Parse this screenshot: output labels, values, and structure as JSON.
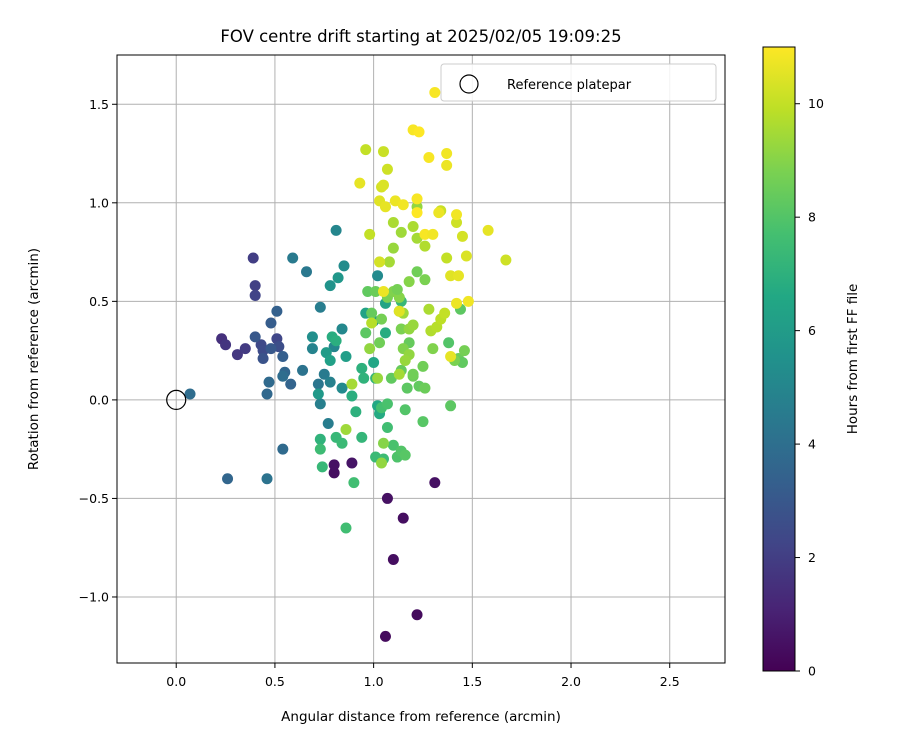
{
  "colors": {
    "grid": "#b0b0b0",
    "reference_marker": "#000000",
    "viridis": [
      "#440154",
      "#482475",
      "#414487",
      "#355f8d",
      "#2a788e",
      "#21918c",
      "#22a884",
      "#44bf70",
      "#7ad151",
      "#bddf26",
      "#fde725"
    ]
  },
  "chart_data": {
    "type": "scatter",
    "title": "FOV centre drift starting at 2025/02/05 19:09:25",
    "xlabel": "Angular distance from reference (arcmin)",
    "ylabel": "Rotation from reference (arcmin)",
    "xlim": [
      -0.3,
      2.78
    ],
    "ylim": [
      -1.335,
      1.75
    ],
    "xticks": [
      0.0,
      0.5,
      1.0,
      1.5,
      2.0,
      2.5
    ],
    "xtick_labels": [
      "0.0",
      "0.5",
      "1.0",
      "1.5",
      "2.0",
      "2.5"
    ],
    "yticks": [
      -1.0,
      -0.5,
      0.0,
      0.5,
      1.0,
      1.5
    ],
    "ytick_labels": [
      "−1.0",
      "−0.5",
      "0.0",
      "0.5",
      "1.0",
      "1.5"
    ],
    "grid": true,
    "legend": {
      "placement": "top-right",
      "entries": [
        "Reference platepar"
      ]
    },
    "reference_point": {
      "x": 0.0,
      "y": 0.0
    },
    "colorbar": {
      "label": "Hours from first FF file",
      "range": [
        0,
        11
      ],
      "ticks": [
        0,
        2,
        4,
        6,
        8,
        10
      ],
      "tick_labels": [
        "0",
        "2",
        "4",
        "6",
        "8",
        "10"
      ]
    },
    "points": [
      [
        1.06,
        -1.2,
        0.3
      ],
      [
        1.22,
        -1.09,
        0.3
      ],
      [
        1.1,
        -0.81,
        0.4
      ],
      [
        1.15,
        -0.6,
        0.4
      ],
      [
        1.07,
        -0.5,
        0.5
      ],
      [
        1.31,
        -0.42,
        0.5
      ],
      [
        0.8,
        -0.37,
        0.4
      ],
      [
        0.8,
        -0.33,
        0.5
      ],
      [
        0.89,
        -0.32,
        0.6
      ],
      [
        0.23,
        0.31,
        1.5
      ],
      [
        0.25,
        0.28,
        1.7
      ],
      [
        0.31,
        0.23,
        1.8
      ],
      [
        0.35,
        0.26,
        1.9
      ],
      [
        0.39,
        0.72,
        2.0
      ],
      [
        0.4,
        0.58,
        2.1
      ],
      [
        0.4,
        0.53,
        2.2
      ],
      [
        0.43,
        0.28,
        2.4
      ],
      [
        0.44,
        0.25,
        2.5
      ],
      [
        0.51,
        0.31,
        2.3
      ],
      [
        0.52,
        0.27,
        2.6
      ],
      [
        0.44,
        0.21,
        2.8
      ],
      [
        0.4,
        0.32,
        3.0
      ],
      [
        0.48,
        0.26,
        3.0
      ],
      [
        0.48,
        0.39,
        3.2
      ],
      [
        0.51,
        0.45,
        3.4
      ],
      [
        0.54,
        0.22,
        3.3
      ],
      [
        0.55,
        0.14,
        3.6
      ],
      [
        0.58,
        0.08,
        3.5
      ],
      [
        0.47,
        0.09,
        3.8
      ],
      [
        0.46,
        0.03,
        3.7
      ],
      [
        0.26,
        -0.4,
        3.6
      ],
      [
        0.54,
        -0.25,
        3.8
      ],
      [
        0.07,
        0.03,
        3.9
      ],
      [
        0.54,
        0.12,
        3.9
      ],
      [
        0.46,
        -0.4,
        4.2
      ],
      [
        0.64,
        0.15,
        4.2
      ],
      [
        0.72,
        0.08,
        4.3
      ],
      [
        0.75,
        0.13,
        4.5
      ],
      [
        0.78,
        0.09,
        4.8
      ],
      [
        0.73,
        -0.02,
        4.7
      ],
      [
        0.77,
        -0.12,
        4.6
      ],
      [
        0.59,
        0.72,
        4.5
      ],
      [
        0.66,
        0.65,
        4.4
      ],
      [
        0.73,
        0.47,
        4.6
      ],
      [
        0.69,
        0.26,
        4.9
      ],
      [
        0.81,
        0.86,
        5.0
      ],
      [
        0.84,
        0.36,
        5.1
      ],
      [
        0.8,
        0.27,
        5.0
      ],
      [
        0.84,
        0.06,
        5.2
      ],
      [
        0.69,
        0.32,
        5.4
      ],
      [
        0.85,
        0.68,
        5.3
      ],
      [
        1.02,
        0.63,
        5.2
      ],
      [
        0.78,
        0.58,
        5.6
      ],
      [
        0.82,
        0.62,
        5.8
      ],
      [
        1.0,
        0.4,
        5.7
      ],
      [
        0.72,
        0.03,
        5.9
      ],
      [
        0.76,
        0.24,
        6.0
      ],
      [
        0.86,
        0.22,
        6.1
      ],
      [
        0.78,
        0.2,
        6.2
      ],
      [
        0.96,
        0.44,
        6.3
      ],
      [
        1.0,
        0.19,
        6.5
      ],
      [
        1.06,
        0.49,
        6.4
      ],
      [
        1.02,
        -0.03,
        6.6
      ],
      [
        1.03,
        -0.07,
        6.7
      ],
      [
        1.06,
        0.34,
        6.8
      ],
      [
        0.79,
        0.32,
        6.8
      ],
      [
        0.81,
        0.3,
        6.9
      ],
      [
        0.89,
        0.02,
        6.9
      ],
      [
        0.94,
        0.16,
        7.0
      ],
      [
        0.95,
        0.11,
        7.1
      ],
      [
        1.01,
        0.11,
        7.2
      ],
      [
        1.14,
        0.5,
        7.3
      ],
      [
        0.91,
        -0.06,
        7.0
      ],
      [
        0.94,
        -0.19,
        7.2
      ],
      [
        0.81,
        -0.19,
        7.3
      ],
      [
        0.84,
        -0.22,
        7.4
      ],
      [
        0.73,
        -0.2,
        7.1
      ],
      [
        0.73,
        -0.25,
        7.5
      ],
      [
        0.74,
        -0.34,
        7.3
      ],
      [
        0.9,
        -0.42,
        7.6
      ],
      [
        0.86,
        -0.65,
        7.6
      ],
      [
        1.01,
        -0.29,
        7.4
      ],
      [
        1.05,
        -0.3,
        7.5
      ],
      [
        1.07,
        -0.14,
        7.6
      ],
      [
        1.04,
        -0.04,
        7.7
      ],
      [
        1.07,
        -0.02,
        7.8
      ],
      [
        1.1,
        -0.23,
        7.8
      ],
      [
        1.12,
        -0.29,
        7.9
      ],
      [
        1.14,
        -0.26,
        8.0
      ],
      [
        1.16,
        -0.28,
        8.1
      ],
      [
        1.16,
        -0.05,
        8.0
      ],
      [
        1.17,
        0.06,
        8.2
      ],
      [
        1.09,
        0.11,
        8.3
      ],
      [
        1.14,
        0.15,
        8.4
      ],
      [
        1.2,
        0.12,
        8.5
      ],
      [
        1.18,
        0.29,
        8.4
      ],
      [
        1.2,
        0.13,
        8.6
      ],
      [
        1.23,
        0.07,
        8.3
      ],
      [
        1.25,
        -0.11,
        8.1
      ],
      [
        1.39,
        -0.03,
        8.2
      ],
      [
        1.26,
        0.06,
        8.5
      ],
      [
        1.25,
        0.17,
        8.6
      ],
      [
        1.38,
        0.29,
        8.0
      ],
      [
        1.44,
        0.46,
        8.2
      ],
      [
        1.43,
        0.21,
        8.5
      ],
      [
        1.45,
        0.19,
        8.3
      ],
      [
        1.46,
        0.25,
        8.7
      ],
      [
        1.41,
        0.2,
        8.8
      ],
      [
        1.3,
        0.26,
        8.9
      ],
      [
        0.96,
        0.34,
        8.2
      ],
      [
        0.97,
        0.55,
        8.3
      ],
      [
        0.99,
        0.44,
        8.4
      ],
      [
        1.01,
        0.55,
        8.5
      ],
      [
        1.03,
        0.29,
        8.6
      ],
      [
        1.04,
        0.41,
        8.7
      ],
      [
        1.07,
        0.52,
        8.8
      ],
      [
        1.1,
        0.55,
        8.9
      ],
      [
        1.13,
        0.52,
        9.0
      ],
      [
        1.14,
        0.36,
        8.8
      ],
      [
        1.15,
        0.26,
        8.9
      ],
      [
        1.12,
        0.56,
        8.7
      ],
      [
        1.22,
        0.65,
        8.6
      ],
      [
        1.26,
        0.61,
        8.8
      ],
      [
        1.18,
        0.6,
        9.0
      ],
      [
        1.13,
        0.45,
        9.1
      ],
      [
        1.18,
        0.36,
        9.2
      ],
      [
        1.2,
        0.38,
        9.3
      ],
      [
        1.15,
        0.44,
        9.4
      ],
      [
        1.18,
        0.23,
        9.2
      ],
      [
        1.16,
        0.2,
        9.3
      ],
      [
        1.13,
        0.13,
        9.5
      ],
      [
        1.05,
        -0.22,
        9.0
      ],
      [
        1.04,
        -0.32,
        9.2
      ],
      [
        0.86,
        -0.15,
        9.4
      ],
      [
        0.89,
        0.08,
        9.5
      ],
      [
        1.02,
        0.11,
        9.3
      ],
      [
        0.98,
        0.26,
        9.2
      ],
      [
        1.08,
        0.7,
        9.5
      ],
      [
        1.1,
        0.77,
        9.3
      ],
      [
        1.14,
        0.85,
        9.4
      ],
      [
        1.2,
        0.88,
        9.6
      ],
      [
        1.22,
        0.82,
        9.5
      ],
      [
        1.26,
        0.78,
        9.7
      ],
      [
        1.22,
        0.98,
        9.2
      ],
      [
        1.1,
        0.9,
        9.6
      ],
      [
        1.28,
        0.46,
        9.6
      ],
      [
        1.29,
        0.35,
        9.7
      ],
      [
        1.32,
        0.37,
        9.8
      ],
      [
        1.34,
        0.41,
        9.9
      ],
      [
        1.36,
        0.44,
        10.0
      ],
      [
        1.34,
        0.96,
        10.1
      ],
      [
        1.37,
        0.72,
        10.0
      ],
      [
        1.42,
        0.9,
        10.2
      ],
      [
        1.45,
        0.83,
        10.3
      ],
      [
        1.47,
        0.73,
        10.4
      ],
      [
        1.39,
        0.63,
        10.5
      ],
      [
        1.43,
        0.63,
        10.6
      ],
      [
        1.42,
        0.49,
        10.7
      ],
      [
        1.48,
        0.5,
        10.8
      ],
      [
        1.39,
        0.22,
        10.6
      ],
      [
        0.96,
        1.27,
        10.0
      ],
      [
        1.05,
        1.26,
        10.1
      ],
      [
        1.07,
        1.17,
        10.2
      ],
      [
        1.04,
        1.08,
        10.3
      ],
      [
        1.05,
        1.09,
        10.4
      ],
      [
        1.03,
        1.01,
        10.5
      ],
      [
        1.06,
        0.98,
        10.6
      ],
      [
        1.11,
        1.01,
        10.7
      ],
      [
        1.15,
        0.99,
        10.8
      ],
      [
        1.2,
        1.37,
        10.9
      ],
      [
        1.23,
        1.36,
        11.0
      ],
      [
        1.28,
        1.23,
        10.9
      ],
      [
        1.31,
        1.56,
        10.9
      ],
      [
        1.37,
        1.25,
        10.8
      ],
      [
        1.37,
        1.19,
        10.7
      ],
      [
        1.42,
        0.94,
        10.8
      ],
      [
        1.22,
        1.02,
        10.9
      ],
      [
        1.22,
        0.95,
        11.0
      ],
      [
        1.26,
        0.84,
        10.9
      ],
      [
        1.3,
        0.84,
        10.8
      ],
      [
        1.33,
        0.95,
        10.7
      ],
      [
        1.58,
        0.86,
        10.6
      ],
      [
        1.67,
        0.71,
        10.2
      ],
      [
        1.13,
        0.45,
        10.5
      ],
      [
        1.05,
        0.55,
        10.7
      ],
      [
        1.03,
        0.7,
        10.3
      ],
      [
        0.98,
        0.84,
        10.0
      ],
      [
        0.93,
        1.1,
        10.6
      ],
      [
        0.99,
        0.39,
        9.8
      ]
    ]
  }
}
